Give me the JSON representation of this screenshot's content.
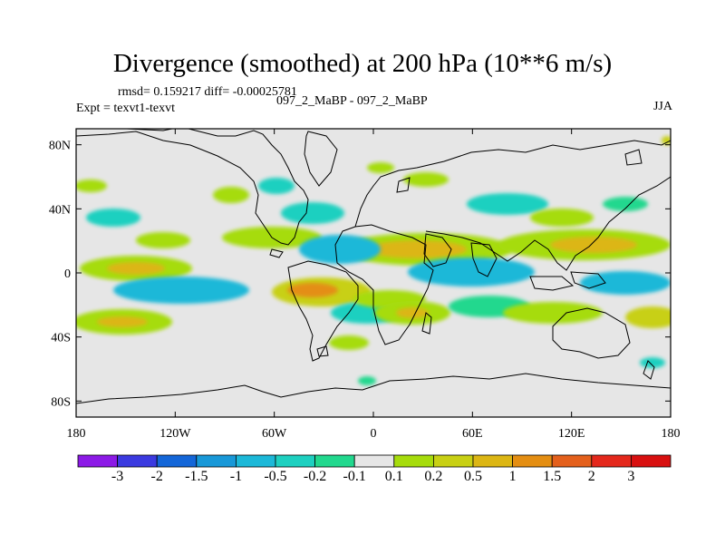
{
  "chart_data": {
    "type": "heatmap",
    "title": "Divergence (smoothed) at 200 hPa (10**6 m/s)",
    "stats_text": "rmsd= 0.159217  diff= -0.00025781",
    "case_label": "097_2_MaBP - 097_2_MaBP",
    "left_label": "Expt = texvt1-texvt",
    "right_label": "JJA",
    "x_range": [
      -180,
      180
    ],
    "y_range": [
      -90,
      90
    ],
    "x_ticks": [
      {
        "value": -180,
        "label": "180"
      },
      {
        "value": -120,
        "label": "120W"
      },
      {
        "value": -60,
        "label": "60W"
      },
      {
        "value": 0,
        "label": "0"
      },
      {
        "value": 60,
        "label": "60E"
      },
      {
        "value": 120,
        "label": "120E"
      },
      {
        "value": 180,
        "label": "180"
      }
    ],
    "y_ticks": [
      {
        "value": 80,
        "label": "80N"
      },
      {
        "value": 40,
        "label": "40N"
      },
      {
        "value": 0,
        "label": "0"
      },
      {
        "value": -40,
        "label": "40S"
      },
      {
        "value": -80,
        "label": "80S"
      }
    ],
    "colorbar": {
      "labels": [
        "-3",
        "-2",
        "-1.5",
        "-1",
        "-0.5",
        "-0.2",
        "-0.1",
        "0.1",
        "0.2",
        "0.5",
        "1",
        "1.5",
        "2",
        "3"
      ],
      "colors": [
        "#8c1ae6",
        "#3b3ae0",
        "#1466d8",
        "#1898d8",
        "#1cb8d8",
        "#1ed0c0",
        "#22d88e",
        "#e6e6e6",
        "#a6dc0c",
        "#c8d014",
        "#dcb614",
        "#e48e12",
        "#e4601c",
        "#e4281c",
        "#d81010"
      ]
    },
    "anomaly_features": [
      {
        "lon": 40,
        "lat": 8,
        "value": 0.6
      },
      {
        "lon": 60,
        "lat": 6,
        "value": -0.8
      },
      {
        "lon": -150,
        "lat": -8,
        "value": 0.5
      },
      {
        "lon": -115,
        "lat": -18,
        "value": -0.7
      },
      {
        "lon": -145,
        "lat": -32,
        "value": 0.6
      },
      {
        "lon": -20,
        "lat": 2,
        "value": -0.7
      },
      {
        "lon": -35,
        "lat": -15,
        "value": 0.9
      },
      {
        "lon": 0,
        "lat": -10,
        "value": 0.7
      },
      {
        "lon": -10,
        "lat": -28,
        "value": -0.6
      },
      {
        "lon": 25,
        "lat": -30,
        "value": 0.7
      },
      {
        "lon": 140,
        "lat": -18,
        "value": -0.6
      },
      {
        "lon": 150,
        "lat": 14,
        "value": 0.6
      },
      {
        "lon": -65,
        "lat": 38,
        "value": 0.4
      },
      {
        "lon": -150,
        "lat": 27,
        "value": -0.5
      },
      {
        "lon": 110,
        "lat": 5,
        "value": -0.4
      },
      {
        "lon": 70,
        "lat": -32,
        "value": -0.4
      },
      {
        "lon": -105,
        "lat": -35,
        "value": 0.5
      },
      {
        "lon": 170,
        "lat": -28,
        "value": 0.5
      }
    ]
  }
}
